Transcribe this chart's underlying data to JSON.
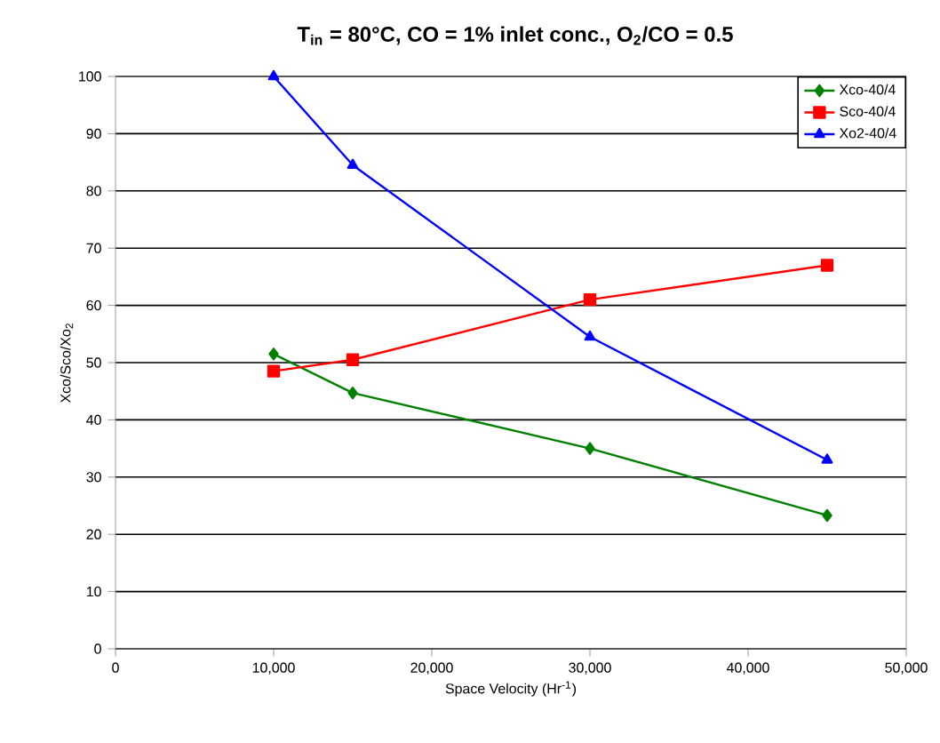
{
  "chart_data": {
    "type": "line",
    "title": "T$_{in}$ = 80°C, CO = 1% inlet conc., O$_{2}$/CO = 0.5",
    "xlabel": "Space Velocity (Hr$^{-1}$)",
    "ylabel": "Xco/Sco/Xo$_{2}$",
    "x": [
      10000,
      15000,
      30000,
      45000
    ],
    "series": [
      {
        "name": "Xco-40/4",
        "color": "#008000",
        "marker": "diamond",
        "values": [
          51.5,
          44.7,
          35,
          23.3
        ]
      },
      {
        "name": "Sco-40/4",
        "color": "#ff0000",
        "marker": "square",
        "values": [
          48.5,
          50.5,
          61,
          67
        ]
      },
      {
        "name": "Xo2-40/4",
        "color": "#0000ff",
        "marker": "triangle",
        "values": [
          100,
          84.5,
          54.5,
          33
        ]
      }
    ],
    "xlim": [
      0,
      50000
    ],
    "xticks": [
      0,
      {
        "value": 10000,
        "label": "10,000"
      },
      {
        "value": 20000,
        "label": "20,000"
      },
      {
        "value": 30000,
        "label": "30,000"
      },
      {
        "value": 40000,
        "label": "40,000"
      },
      {
        "value": 50000,
        "label": "50,000"
      }
    ],
    "ylim": [
      0,
      100
    ],
    "yticks": [
      0,
      10,
      20,
      30,
      40,
      50,
      60,
      70,
      80,
      90,
      100
    ],
    "grid": "y",
    "legend": "top right",
    "line_style": "solid"
  }
}
